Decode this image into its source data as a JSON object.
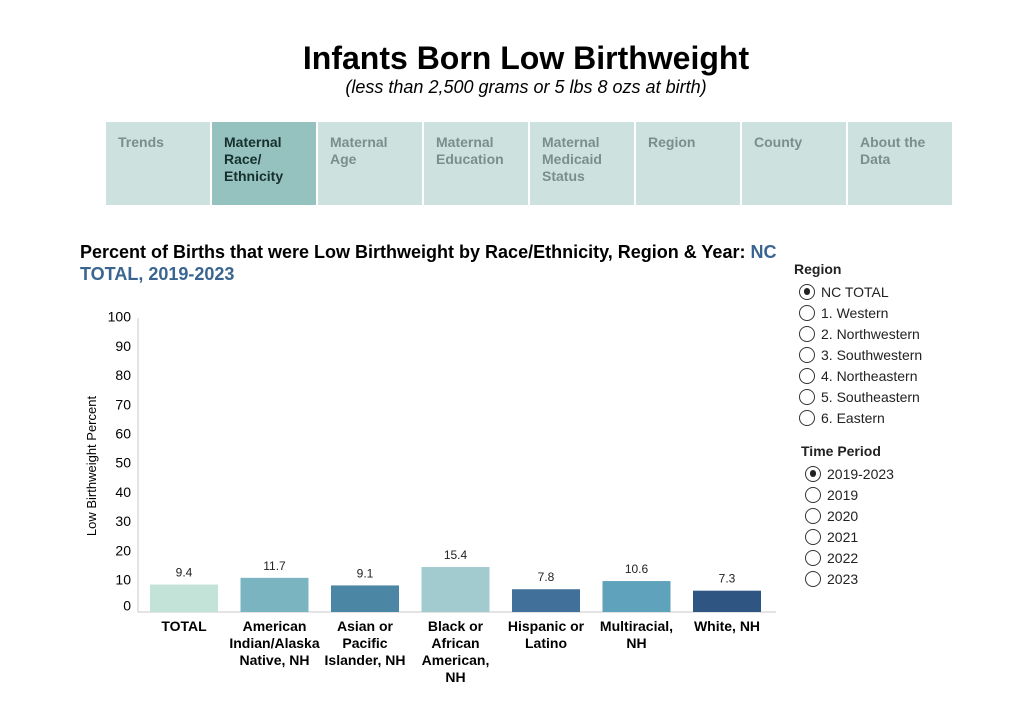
{
  "header": {
    "title": "Infants Born Low Birthweight",
    "subtitle": "(less than 2,500 grams or 5 lbs 8 ozs at birth)"
  },
  "tabs": [
    {
      "label": "Trends",
      "active": false
    },
    {
      "label": "Maternal Race/ Ethnicity",
      "active": true
    },
    {
      "label": "Maternal Age",
      "active": false
    },
    {
      "label": "Maternal Education",
      "active": false
    },
    {
      "label": "Maternal Medicaid Status",
      "active": false
    },
    {
      "label": "Region",
      "active": false
    },
    {
      "label": "County",
      "active": false
    },
    {
      "label": "About the Data",
      "active": false
    }
  ],
  "chart_heading": {
    "text": "Percent of Births that were Low Birthweight by Race/Ethnicity, Region & Year:",
    "selection": "NC TOTAL, 2019-2023"
  },
  "chart_data": {
    "type": "bar",
    "ylabel": "Low Birthweight Percent",
    "xlabel": "",
    "ylim": [
      0,
      100
    ],
    "yticks": [
      0,
      10,
      20,
      30,
      40,
      50,
      60,
      70,
      80,
      90,
      100
    ],
    "grid": false,
    "categories": [
      [
        "TOTAL"
      ],
      [
        "American",
        "Indian/Alaska",
        "Native, NH"
      ],
      [
        "Asian or",
        "Pacific",
        "Islander, NH"
      ],
      [
        "Black or",
        "African",
        "American,",
        "NH"
      ],
      [
        "Hispanic or",
        "Latino"
      ],
      [
        "Multiracial,",
        "NH"
      ],
      [
        "White, NH"
      ]
    ],
    "values": [
      9.4,
      11.7,
      9.1,
      15.4,
      7.8,
      10.6,
      7.3
    ],
    "value_labels": [
      "9.4",
      "11.7",
      "9.1",
      "15.4",
      "7.8",
      "10.6",
      "7.3"
    ],
    "colors": [
      "#c3e3d9",
      "#7ab4c0",
      "#4b87a5",
      "#a2cbd0",
      "#41719a",
      "#5ea2bb",
      "#2f5683"
    ]
  },
  "region_filter": {
    "title": "Region",
    "options": [
      "NC TOTAL",
      "1. Western",
      "2. Northwestern",
      "3. Southwestern",
      "4. Northeastern",
      "5. Southeastern",
      "6. Eastern"
    ],
    "selected": 0
  },
  "period_filter": {
    "title": "Time Period",
    "options": [
      "2019-2023",
      "2019",
      "2020",
      "2021",
      "2022",
      "2023"
    ],
    "selected": 0
  }
}
